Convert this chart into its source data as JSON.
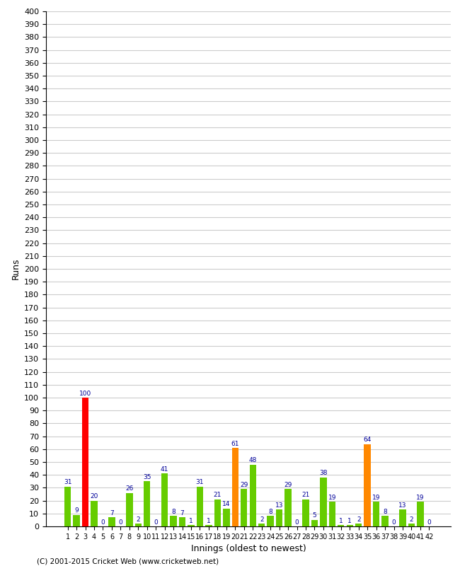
{
  "title_visible": false,
  "xlabel": "Innings (oldest to newest)",
  "ylabel": "Runs",
  "copyright": "(C) 2001-2015 Cricket Web (www.cricketweb.net)",
  "ylim": [
    0,
    400
  ],
  "innings": [
    1,
    2,
    3,
    4,
    5,
    6,
    7,
    8,
    9,
    10,
    11,
    12,
    13,
    14,
    15,
    16,
    17,
    18,
    19,
    20,
    21,
    22,
    23,
    24,
    25,
    26,
    27,
    28,
    29,
    30,
    31,
    32,
    33,
    34,
    35,
    36,
    37,
    38,
    39,
    40,
    41,
    42
  ],
  "values": [
    31,
    9,
    100,
    20,
    0,
    7,
    0,
    26,
    2,
    35,
    0,
    41,
    8,
    7,
    1,
    31,
    1,
    21,
    14,
    61,
    29,
    48,
    2,
    8,
    13,
    29,
    0,
    21,
    5,
    38,
    19,
    1,
    1,
    2,
    64,
    19,
    8,
    0,
    13,
    2,
    19,
    0
  ],
  "colors": [
    "#66cc00",
    "#66cc00",
    "#ff0000",
    "#66cc00",
    "#66cc00",
    "#66cc00",
    "#66cc00",
    "#66cc00",
    "#66cc00",
    "#66cc00",
    "#66cc00",
    "#66cc00",
    "#66cc00",
    "#66cc00",
    "#66cc00",
    "#66cc00",
    "#66cc00",
    "#66cc00",
    "#66cc00",
    "#ff8800",
    "#66cc00",
    "#66cc00",
    "#66cc00",
    "#66cc00",
    "#66cc00",
    "#66cc00",
    "#66cc00",
    "#66cc00",
    "#66cc00",
    "#66cc00",
    "#66cc00",
    "#66cc00",
    "#66cc00",
    "#66cc00",
    "#ff8800",
    "#66cc00",
    "#66cc00",
    "#66cc00",
    "#66cc00",
    "#66cc00",
    "#66cc00",
    "#66cc00"
  ],
  "label_color": "#000099",
  "bar_width": 0.75,
  "grid_color": "#cccccc",
  "bg_color": "#ffffff",
  "label_fontsize": 6.5,
  "axis_label_fontsize": 9,
  "tick_fontsize": 8,
  "xtick_fontsize": 7
}
